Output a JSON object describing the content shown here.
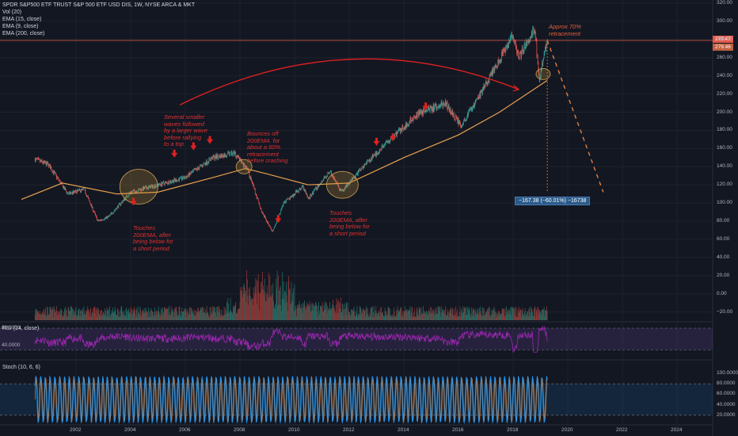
{
  "header": {
    "title": "SPDR S&P500 ETF TRUST S&P 500 ETF USD DIS, 1W, NYSE ARCA & MKT",
    "ind_vol": "Vol (20)",
    "ind_ema15": "EMA (15, close)",
    "ind_ema9": "EMA (9, close)",
    "ind_ema200": "EMA (200, close)",
    "ind_rsi": "RSI (14, close)",
    "ind_stoch": "Stoch (10, 6, 6)"
  },
  "annotations": {
    "a1": "Several smaller\nwaves followed\nby a larger wave\nbefore rallying\nto a top",
    "a2": "Bounces off\n200EMA  for\nabout a 60%\nretracement\nbefore crashing",
    "a3": "Touches\n200EMA, after\nbeing below for\na short period",
    "a4": "Touches\n200EMA, after\nbeing below for\na short period",
    "a5": "Approx 70%\nretracement",
    "measure": "−167.38 (−60.01%) −16738"
  },
  "price_tags": {
    "last": "279.47",
    "second": "279.46"
  },
  "colors": {
    "bg": "#131722",
    "up": "#26a69a",
    "down": "#ef5350",
    "ema200": "#e8a050",
    "rsi": "#9c27b0",
    "stoch_k": "#2196f3",
    "stoch_d": "#ef6c00",
    "annotation": "#e03030"
  },
  "chart_data": {
    "type": "candlestick",
    "title": "SPDR S&P500 ETF TRUST S&P 500 ETF USD DIS, 1W, NYSE ARCA & MKT",
    "xlabel": "",
    "ylabel": "",
    "x_ticks": [
      "2002",
      "2004",
      "2006",
      "2008",
      "2010",
      "2012",
      "2014",
      "2016",
      "2018",
      "2020",
      "2022",
      "2024"
    ],
    "price_ticks": [
      320,
      300,
      280,
      260,
      240,
      220,
      200,
      180,
      160,
      140,
      120,
      100,
      80,
      60,
      40,
      20,
      0,
      -20
    ],
    "price_tick_labels": [
      "320.00",
      "300.00",
      "280.00",
      "260.00",
      "240.00",
      "220.00",
      "200.00",
      "180.00",
      "160.00",
      "140.00",
      "120.00",
      "100.00",
      "80.00",
      "60.00",
      "40.00",
      "20.00",
      "0.00",
      "−20.00"
    ],
    "ylim": [
      -26,
      330
    ],
    "price_key_points": [
      {
        "t": 2000.5,
        "v": 148
      },
      {
        "t": 2001.0,
        "v": 142
      },
      {
        "t": 2001.7,
        "v": 110
      },
      {
        "t": 2002.3,
        "v": 115
      },
      {
        "t": 2002.8,
        "v": 80
      },
      {
        "t": 2003.2,
        "v": 85
      },
      {
        "t": 2004.0,
        "v": 112
      },
      {
        "t": 2005.0,
        "v": 120
      },
      {
        "t": 2006.0,
        "v": 128
      },
      {
        "t": 2007.0,
        "v": 150
      },
      {
        "t": 2007.8,
        "v": 155
      },
      {
        "t": 2008.3,
        "v": 135
      },
      {
        "t": 2008.8,
        "v": 90
      },
      {
        "t": 2009.2,
        "v": 68
      },
      {
        "t": 2009.6,
        "v": 100
      },
      {
        "t": 2010.3,
        "v": 118
      },
      {
        "t": 2010.5,
        "v": 105
      },
      {
        "t": 2011.3,
        "v": 135
      },
      {
        "t": 2011.7,
        "v": 112
      },
      {
        "t": 2012.5,
        "v": 140
      },
      {
        "t": 2013.5,
        "v": 170
      },
      {
        "t": 2014.5,
        "v": 198
      },
      {
        "t": 2015.5,
        "v": 210
      },
      {
        "t": 2016.1,
        "v": 185
      },
      {
        "t": 2016.9,
        "v": 225
      },
      {
        "t": 2018.0,
        "v": 285
      },
      {
        "t": 2018.2,
        "v": 260
      },
      {
        "t": 2018.8,
        "v": 292
      },
      {
        "t": 2018.95,
        "v": 235
      },
      {
        "t": 2019.25,
        "v": 279
      }
    ],
    "ema200_key_points": [
      {
        "t": 2000.0,
        "v": 104
      },
      {
        "t": 2001.5,
        "v": 122
      },
      {
        "t": 2003.5,
        "v": 110
      },
      {
        "t": 2005.0,
        "v": 112
      },
      {
        "t": 2007.0,
        "v": 128
      },
      {
        "t": 2008.2,
        "v": 138
      },
      {
        "t": 2009.0,
        "v": 132
      },
      {
        "t": 2010.5,
        "v": 120
      },
      {
        "t": 2012.0,
        "v": 122
      },
      {
        "t": 2014.0,
        "v": 150
      },
      {
        "t": 2016.0,
        "v": 175
      },
      {
        "t": 2017.5,
        "v": 200
      },
      {
        "t": 2019.25,
        "v": 235
      }
    ],
    "projection": [
      {
        "t": 2019.25,
        "v": 279
      },
      {
        "t": 2021.3,
        "v": 112
      }
    ],
    "rsi_ticks": [
      "80.0000",
      "40.0000"
    ],
    "rsi_levels": [
      80,
      30
    ],
    "stoch_ticks": [
      "100.0000",
      "80.0000",
      "60.0000",
      "40.0000",
      "20.0000"
    ],
    "stoch_levels": [
      80,
      20
    ]
  }
}
